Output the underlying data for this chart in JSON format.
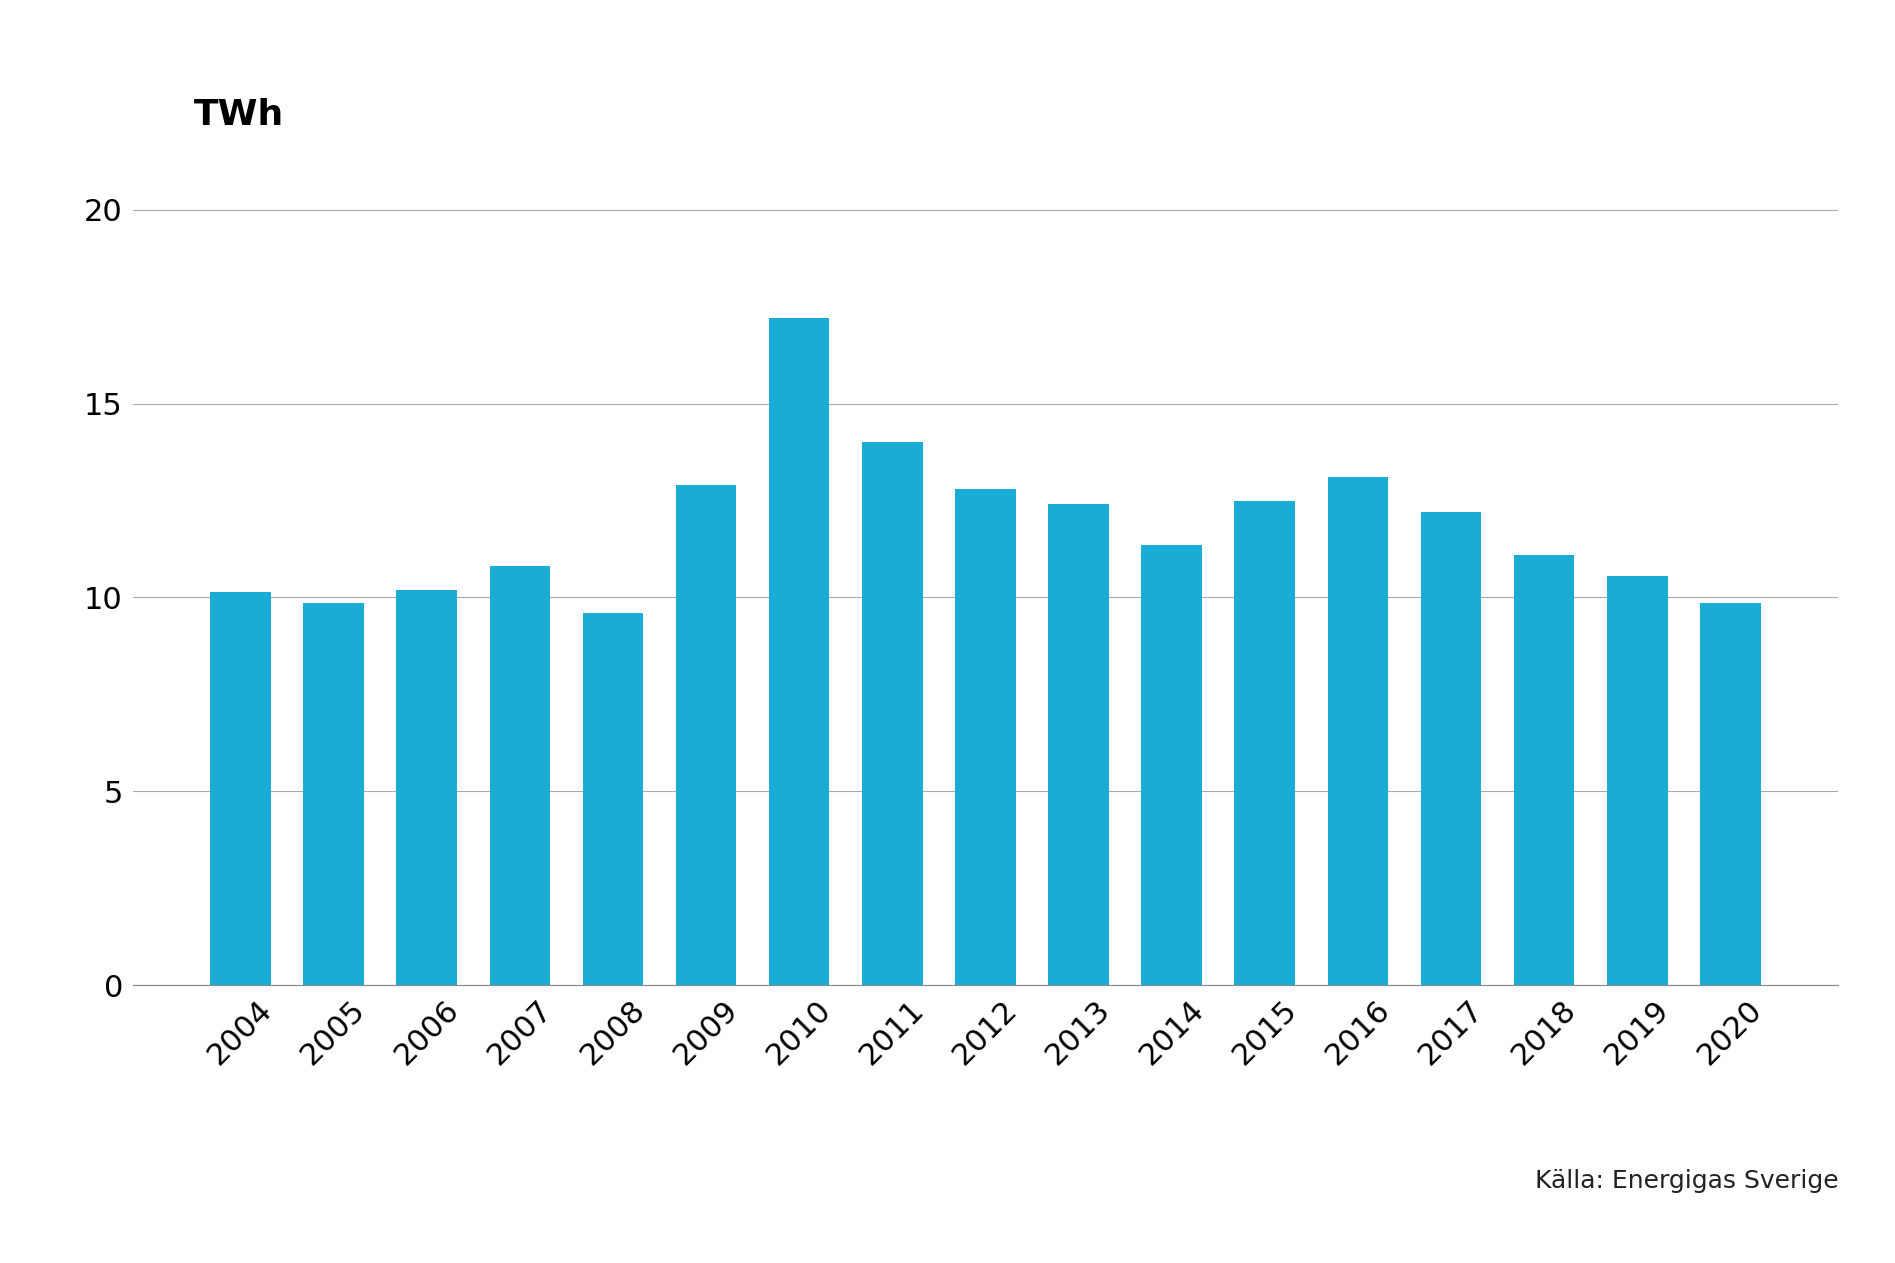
{
  "years": [
    "2004",
    "2005",
    "2006",
    "2007",
    "2008",
    "2009",
    "2010",
    "2011",
    "2012",
    "2013",
    "2014",
    "2015",
    "2016",
    "2017",
    "2018",
    "2019",
    "2020"
  ],
  "values": [
    10.15,
    9.85,
    10.2,
    10.8,
    9.6,
    12.9,
    17.2,
    14.0,
    12.8,
    12.4,
    11.35,
    12.5,
    13.1,
    12.2,
    11.1,
    10.55,
    9.85
  ],
  "bar_color": "#1BACD6",
  "twh_label": "TWh",
  "twh_fontsize": 26,
  "tick_fontsize": 22,
  "yticks": [
    0,
    5,
    10,
    15,
    20
  ],
  "ylim": [
    0,
    21.5
  ],
  "grid_color": "#aaaaaa",
  "grid_linewidth": 0.8,
  "annotation": "Källa: Energigas Sverige",
  "annotation_fontsize": 18,
  "background_color": "#ffffff"
}
